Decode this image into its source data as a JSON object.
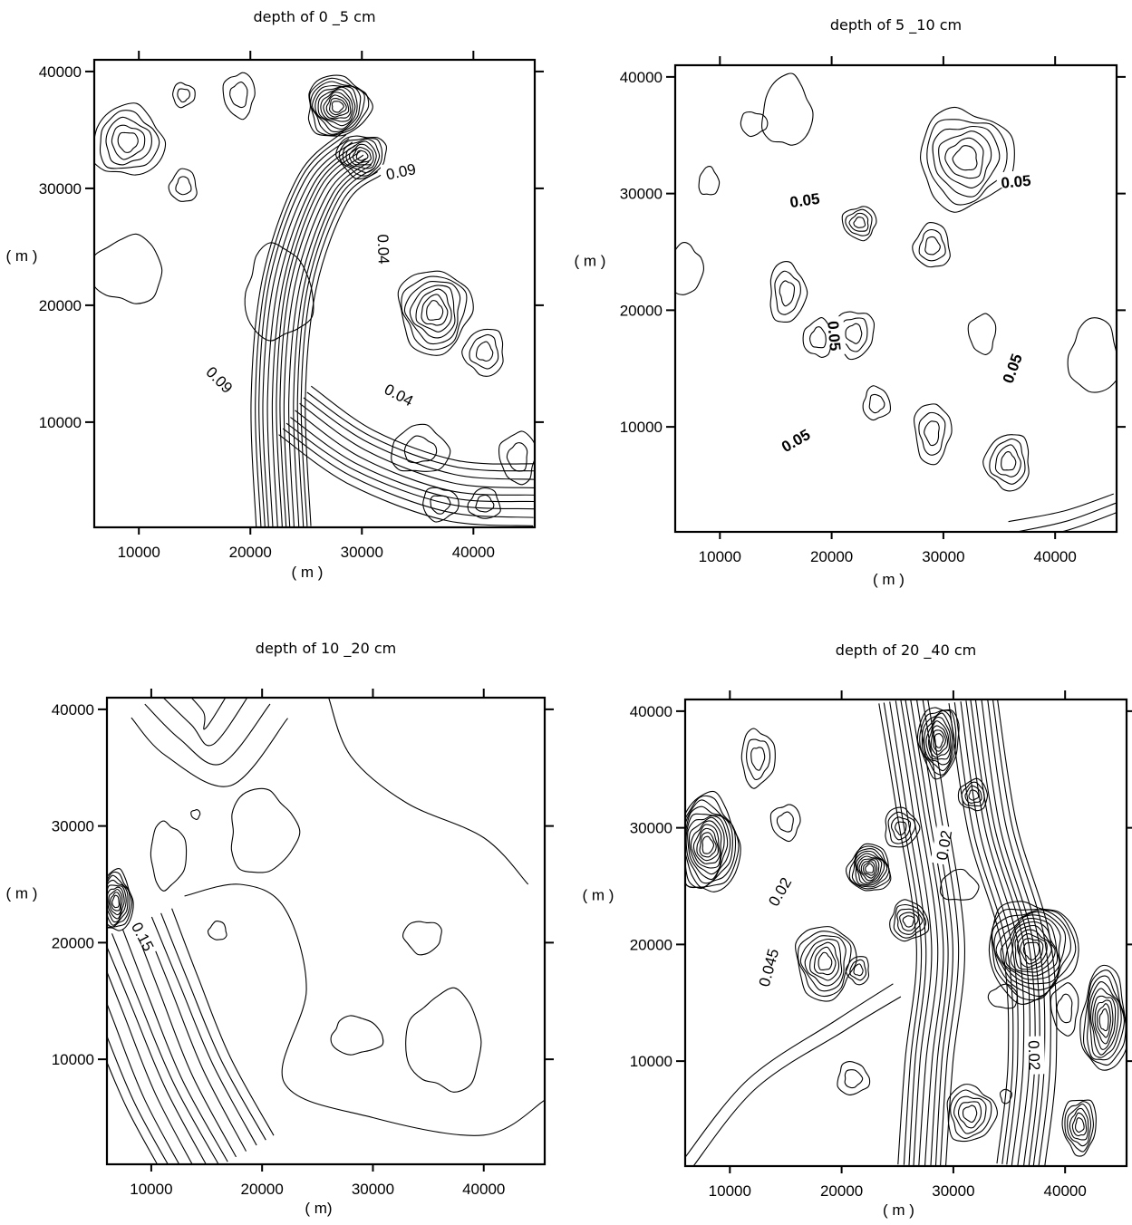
{
  "chart_data": [
    {
      "type": "contour",
      "title": "depth of 0 _5 cm",
      "xlabel": "( m )",
      "ylabel": "( m )",
      "xlim": [
        6000,
        45500
      ],
      "ylim": [
        1000,
        41000
      ],
      "xticks": [
        10000,
        20000,
        30000,
        40000
      ],
      "yticks": [
        10000,
        20000,
        30000,
        40000
      ],
      "contour_labels": [
        {
          "text": "0.09",
          "x": 33500,
          "y": 31400,
          "angle": -12,
          "bold": false
        },
        {
          "text": "0.04",
          "x": 31900,
          "y": 24800,
          "angle": 88,
          "bold": false
        },
        {
          "text": "0.09",
          "x": 17200,
          "y": 13600,
          "angle": 45,
          "bold": false
        },
        {
          "text": "0.04",
          "x": 33300,
          "y": 12300,
          "angle": 28,
          "bold": false
        }
      ],
      "peaks": [
        {
          "x": 9000,
          "y": 34000,
          "rings": 5,
          "rx": 3200,
          "ry": 3000
        },
        {
          "x": 14000,
          "y": 38000,
          "rings": 2,
          "rx": 1000,
          "ry": 1000
        },
        {
          "x": 19000,
          "y": 38000,
          "rings": 2,
          "rx": 1400,
          "ry": 1900
        },
        {
          "x": 14000,
          "y": 30200,
          "rings": 2,
          "rx": 1200,
          "ry": 1400
        },
        {
          "x": 27800,
          "y": 37000,
          "rings": 11,
          "rx": 2800,
          "ry": 2600
        },
        {
          "x": 30000,
          "y": 32800,
          "rings": 7,
          "rx": 2200,
          "ry": 1800
        },
        {
          "x": 9000,
          "y": 23000,
          "rings": 1,
          "rx": 3200,
          "ry": 2800
        },
        {
          "x": 22500,
          "y": 21000,
          "rings": 1,
          "rx": 3000,
          "ry": 4000
        },
        {
          "x": 36500,
          "y": 19500,
          "rings": 7,
          "rx": 3200,
          "ry": 3600
        },
        {
          "x": 41000,
          "y": 16000,
          "rings": 3,
          "rx": 1800,
          "ry": 2000
        },
        {
          "x": 35200,
          "y": 7600,
          "rings": 2,
          "rx": 2600,
          "ry": 2000
        },
        {
          "x": 37000,
          "y": 3000,
          "rings": 2,
          "rx": 1600,
          "ry": 1400
        },
        {
          "x": 44000,
          "y": 7000,
          "rings": 2,
          "rx": 1600,
          "ry": 2200
        },
        {
          "x": 41000,
          "y": 3000,
          "rings": 2,
          "rx": 1400,
          "ry": 1300
        }
      ],
      "streams": [
        {
          "count": 14,
          "spread": 380,
          "points": [
            [
              23000,
              1000
            ],
            [
              22500,
              12000
            ],
            [
              23500,
              22000
            ],
            [
              26500,
              30000
            ],
            [
              30000,
              33000
            ]
          ]
        },
        {
          "count": 9,
          "spread": 650,
          "points": [
            [
              24000,
              11000
            ],
            [
              30000,
              7000
            ],
            [
              38000,
              4200
            ],
            [
              45500,
              3800
            ]
          ]
        }
      ]
    },
    {
      "type": "contour",
      "title": "depth of 5 _10 cm",
      "xlabel": "( m )",
      "ylabel": "( m )",
      "xlim": [
        6000,
        45500
      ],
      "ylim": [
        1000,
        41000
      ],
      "xticks": [
        10000,
        20000,
        30000,
        40000
      ],
      "yticks": [
        10000,
        20000,
        30000,
        40000
      ],
      "contour_labels": [
        {
          "text": "0.05",
          "x": 17600,
          "y": 29400,
          "angle": -8,
          "bold": true
        },
        {
          "text": "0.05",
          "x": 36500,
          "y": 31000,
          "angle": -5,
          "bold": true
        },
        {
          "text": "0.05",
          "x": 20200,
          "y": 17800,
          "angle": 85,
          "bold": true
        },
        {
          "text": "0.05",
          "x": 36200,
          "y": 15000,
          "angle": -70,
          "bold": true
        },
        {
          "text": "0.05",
          "x": 16800,
          "y": 8800,
          "angle": -30,
          "bold": true
        }
      ],
      "peaks": [
        {
          "x": 16000,
          "y": 37000,
          "rings": 1,
          "rx": 2200,
          "ry": 3000
        },
        {
          "x": 32000,
          "y": 33000,
          "rings": 6,
          "rx": 4200,
          "ry": 4200
        },
        {
          "x": 22500,
          "y": 27500,
          "rings": 4,
          "rx": 1500,
          "ry": 1400
        },
        {
          "x": 29000,
          "y": 25500,
          "rings": 3,
          "rx": 1600,
          "ry": 1900
        },
        {
          "x": 16000,
          "y": 21500,
          "rings": 3,
          "rx": 1600,
          "ry": 2600
        },
        {
          "x": 22000,
          "y": 18000,
          "rings": 3,
          "rx": 1800,
          "ry": 2000
        },
        {
          "x": 18800,
          "y": 17600,
          "rings": 2,
          "rx": 1300,
          "ry": 1600
        },
        {
          "x": 24000,
          "y": 12000,
          "rings": 2,
          "rx": 1200,
          "ry": 1400
        },
        {
          "x": 29000,
          "y": 9500,
          "rings": 3,
          "rx": 1600,
          "ry": 2600
        },
        {
          "x": 35800,
          "y": 7000,
          "rings": 4,
          "rx": 2000,
          "ry": 2400
        },
        {
          "x": 9000,
          "y": 31000,
          "rings": 1,
          "rx": 900,
          "ry": 1200
        },
        {
          "x": 13000,
          "y": 36000,
          "rings": 1,
          "rx": 1200,
          "ry": 1000
        },
        {
          "x": 33500,
          "y": 18000,
          "rings": 1,
          "rx": 1200,
          "ry": 1700
        },
        {
          "x": 43500,
          "y": 16000,
          "rings": 1,
          "rx": 2200,
          "ry": 3200
        },
        {
          "x": 7000,
          "y": 23500,
          "rings": 1,
          "rx": 1400,
          "ry": 2200
        }
      ],
      "streams": [
        {
          "count": 3,
          "spread": 900,
          "points": [
            [
              36000,
              1000
            ],
            [
              41000,
              2000
            ],
            [
              45500,
              3500
            ]
          ]
        }
      ]
    },
    {
      "type": "contour",
      "title": "depth of 10 _20 cm",
      "xlabel": "( m)",
      "ylabel": "( m )",
      "xlim": [
        6000,
        45500
      ],
      "ylim": [
        1000,
        41000
      ],
      "xticks": [
        10000,
        20000,
        30000,
        40000
      ],
      "yticks": [
        10000,
        20000,
        30000,
        40000
      ],
      "contour_labels": [
        {
          "text": "0.15",
          "x": 9200,
          "y": 20500,
          "angle": 62,
          "bold": false
        }
      ],
      "peaks": [
        {
          "x": 6800,
          "y": 23500,
          "rings": 9,
          "rx": 1500,
          "ry": 2600
        },
        {
          "x": 11500,
          "y": 27500,
          "rings": 1,
          "rx": 1600,
          "ry": 2800
        },
        {
          "x": 14000,
          "y": 31000,
          "rings": 1,
          "rx": 400,
          "ry": 400
        },
        {
          "x": 16000,
          "y": 21000,
          "rings": 1,
          "rx": 800,
          "ry": 800
        },
        {
          "x": 20000,
          "y": 29500,
          "rings": 1,
          "rx": 3000,
          "ry": 3600
        },
        {
          "x": 34500,
          "y": 20500,
          "rings": 1,
          "rx": 1700,
          "ry": 1400
        },
        {
          "x": 36500,
          "y": 11500,
          "rings": 1,
          "rx": 3400,
          "ry": 4200
        },
        {
          "x": 28500,
          "y": 12000,
          "rings": 1,
          "rx": 2300,
          "ry": 1600
        }
      ],
      "streams": [
        {
          "count": 12,
          "spread": 950,
          "points": [
            [
              7000,
              21000
            ],
            [
              9500,
              15000
            ],
            [
              12500,
              8000
            ],
            [
              16500,
              1000
            ]
          ]
        },
        {
          "count": 4,
          "spread": 1800,
          "points": [
            [
              10000,
              41000
            ],
            [
              13000,
              38000
            ],
            [
              16000,
              36000
            ],
            [
              20000,
              41000
            ]
          ]
        },
        {
          "count": 1,
          "spread": 0,
          "points": [
            [
              26000,
              41000
            ],
            [
              28000,
              36000
            ],
            [
              33000,
              32000
            ],
            [
              40000,
              29000
            ],
            [
              44000,
              25000
            ]
          ]
        },
        {
          "count": 1,
          "spread": 0,
          "points": [
            [
              13000,
              24000
            ],
            [
              18000,
              25000
            ],
            [
              22000,
              23000
            ],
            [
              24000,
              16000
            ],
            [
              22000,
              8000
            ],
            [
              30000,
              5000
            ],
            [
              40000,
              3500
            ],
            [
              45500,
              6500
            ]
          ]
        }
      ]
    },
    {
      "type": "contour",
      "title": "depth of 20 _40 cm",
      "xlabel": "( m )",
      "ylabel": "( m )",
      "xlim": [
        6000,
        45500
      ],
      "ylim": [
        1000,
        41000
      ],
      "xticks": [
        10000,
        20000,
        30000,
        40000
      ],
      "yticks": [
        10000,
        20000,
        30000,
        40000
      ],
      "contour_labels": [
        {
          "text": "0.02",
          "x": 29200,
          "y": 28500,
          "angle": -80,
          "bold": false
        },
        {
          "text": "0.02",
          "x": 14500,
          "y": 24500,
          "angle": -60,
          "bold": false
        },
        {
          "text": "0.045",
          "x": 13500,
          "y": 18000,
          "angle": -75,
          "bold": false
        },
        {
          "text": "0.02",
          "x": 37200,
          "y": 10500,
          "angle": 88,
          "bold": false
        }
      ],
      "peaks": [
        {
          "x": 8000,
          "y": 28500,
          "rings": 12,
          "rx": 2800,
          "ry": 4200
        },
        {
          "x": 12500,
          "y": 36000,
          "rings": 3,
          "rx": 1500,
          "ry": 2400
        },
        {
          "x": 15000,
          "y": 30500,
          "rings": 2,
          "rx": 1300,
          "ry": 1500
        },
        {
          "x": 22500,
          "y": 26500,
          "rings": 10,
          "rx": 1900,
          "ry": 2000
        },
        {
          "x": 25300,
          "y": 30000,
          "rings": 4,
          "rx": 1500,
          "ry": 1700
        },
        {
          "x": 28700,
          "y": 37500,
          "rings": 9,
          "rx": 1800,
          "ry": 3000
        },
        {
          "x": 31800,
          "y": 32800,
          "rings": 4,
          "rx": 1300,
          "ry": 1300
        },
        {
          "x": 26000,
          "y": 22000,
          "rings": 5,
          "rx": 1700,
          "ry": 1700
        },
        {
          "x": 18500,
          "y": 18500,
          "rings": 7,
          "rx": 2600,
          "ry": 3200
        },
        {
          "x": 21500,
          "y": 17800,
          "rings": 3,
          "rx": 1000,
          "ry": 1200
        },
        {
          "x": 30500,
          "y": 25000,
          "rings": 1,
          "rx": 1700,
          "ry": 1300
        },
        {
          "x": 37000,
          "y": 19500,
          "rings": 12,
          "rx": 4000,
          "ry": 4200
        },
        {
          "x": 40000,
          "y": 14500,
          "rings": 2,
          "rx": 1200,
          "ry": 2200
        },
        {
          "x": 43500,
          "y": 13500,
          "rings": 9,
          "rx": 2000,
          "ry": 4500
        },
        {
          "x": 31500,
          "y": 5500,
          "rings": 5,
          "rx": 2200,
          "ry": 2400
        },
        {
          "x": 41300,
          "y": 4500,
          "rings": 6,
          "rx": 1500,
          "ry": 2400
        },
        {
          "x": 34500,
          "y": 15500,
          "rings": 1,
          "rx": 1300,
          "ry": 1000
        },
        {
          "x": 21000,
          "y": 8500,
          "rings": 2,
          "rx": 1400,
          "ry": 1400
        },
        {
          "x": 34700,
          "y": 7000,
          "rings": 1,
          "rx": 500,
          "ry": 600
        }
      ],
      "streams": [
        {
          "count": 10,
          "spread": 480,
          "points": [
            [
              27200,
              1000
            ],
            [
              27800,
              10000
            ],
            [
              28800,
              20000
            ],
            [
              27000,
              32000
            ],
            [
              25500,
              41000
            ]
          ]
        },
        {
          "count": 10,
          "spread": 480,
          "points": [
            [
              36000,
              1000
            ],
            [
              37000,
              10000
            ],
            [
              36500,
              20000
            ],
            [
              33500,
              30000
            ],
            [
              31800,
              41000
            ]
          ]
        },
        {
          "count": 2,
          "spread": 1200,
          "points": [
            [
              6000,
              1000
            ],
            [
              12000,
              8000
            ],
            [
              20000,
              13000
            ],
            [
              25000,
              16000
            ]
          ]
        }
      ]
    }
  ]
}
